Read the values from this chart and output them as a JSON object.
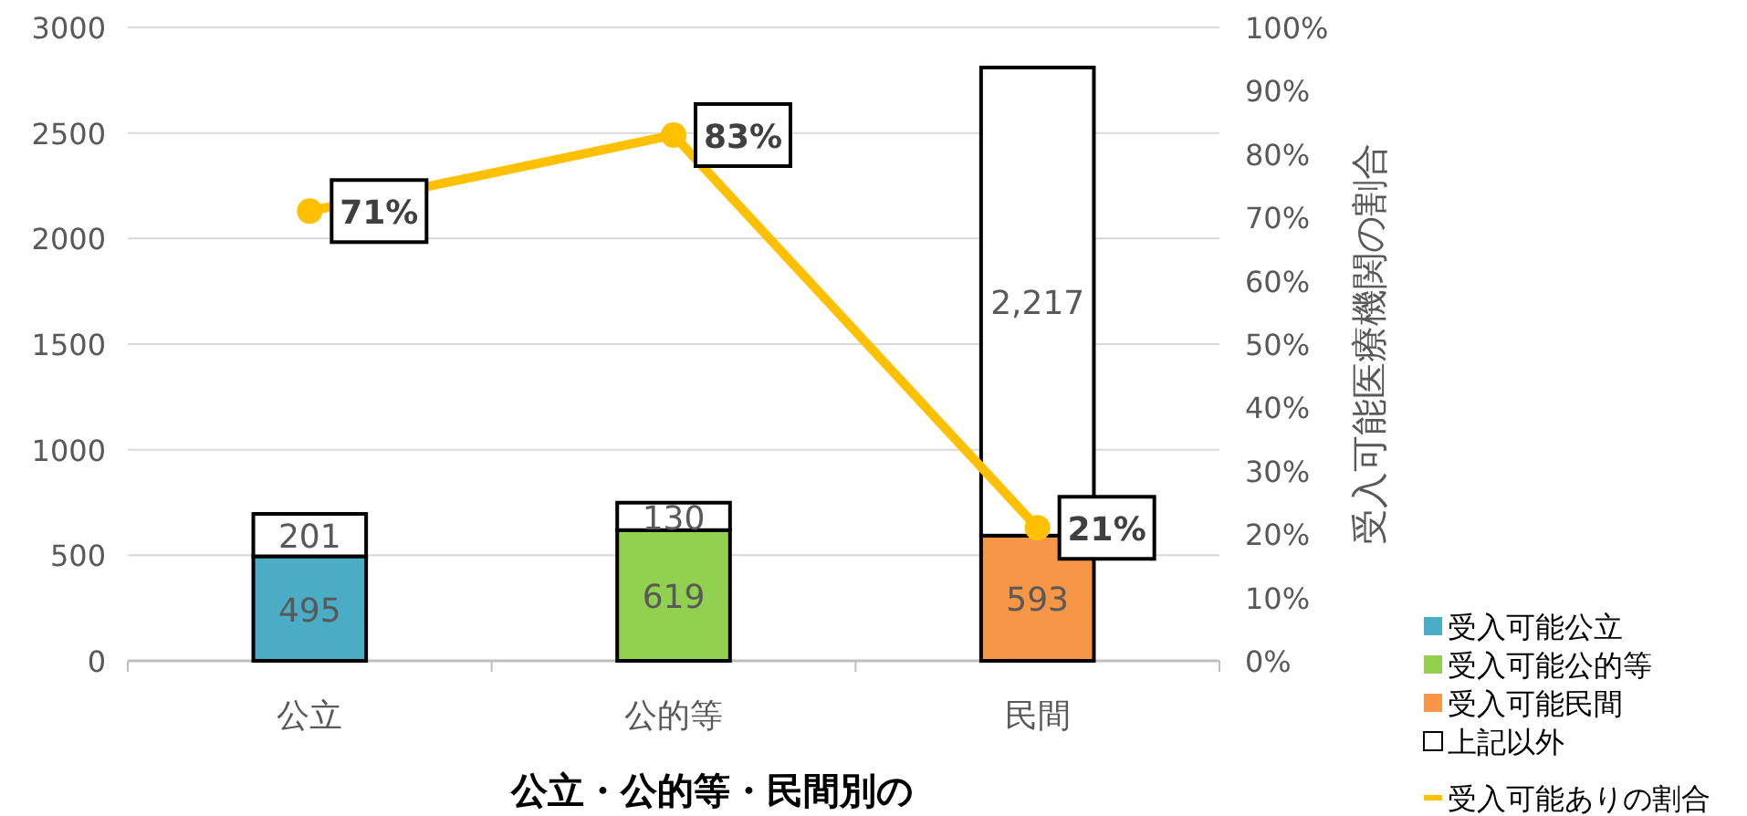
{
  "chart_data": {
    "type": "bar",
    "stacked": true,
    "title": "公立・公的等・民間別の",
    "categories": [
      "公立",
      "公的等",
      "民間"
    ],
    "series": [
      {
        "name": "受入可能公立",
        "color": "#4bacc6",
        "values": [
          495,
          null,
          null
        ],
        "value_labels": [
          "495",
          null,
          null
        ]
      },
      {
        "name": "受入可能公的等",
        "color": "#92d050",
        "values": [
          null,
          619,
          null
        ],
        "value_labels": [
          null,
          "619",
          null
        ]
      },
      {
        "name": "受入可能民間",
        "color": "#f79646",
        "values": [
          null,
          null,
          593
        ],
        "value_labels": [
          null,
          null,
          "593"
        ]
      },
      {
        "name": "上記以外",
        "color": "#ffffff",
        "values": [
          201,
          130,
          2217
        ],
        "value_labels": [
          "201",
          "130",
          "2,217"
        ]
      },
      {
        "name": "受入可能ありの割合",
        "type": "line",
        "axis": "y2",
        "color": "#ffc000",
        "marker": "circle",
        "values": [
          71,
          83,
          21
        ],
        "value_labels": [
          "71%",
          "83%",
          "21%"
        ]
      }
    ],
    "ylim": [
      0,
      3000
    ],
    "yticks": [
      0,
      500,
      1000,
      1500,
      2000,
      2500,
      3000
    ],
    "y2label": "受入可能医療機関の割合",
    "y2lim": [
      0,
      100
    ],
    "y2ticks": [
      {
        "value": 0,
        "label": "0%"
      },
      {
        "value": 10,
        "label": "10%"
      },
      {
        "value": 20,
        "label": "20%"
      },
      {
        "value": 30,
        "label": "30%"
      },
      {
        "value": 40,
        "label": "40%"
      },
      {
        "value": 50,
        "label": "50%"
      },
      {
        "value": 60,
        "label": "60%"
      },
      {
        "value": 70,
        "label": "70%"
      },
      {
        "value": 80,
        "label": "80%"
      },
      {
        "value": 90,
        "label": "90%"
      },
      {
        "value": 100,
        "label": "100%"
      }
    ],
    "grid": "y",
    "legend": "bottom right"
  }
}
